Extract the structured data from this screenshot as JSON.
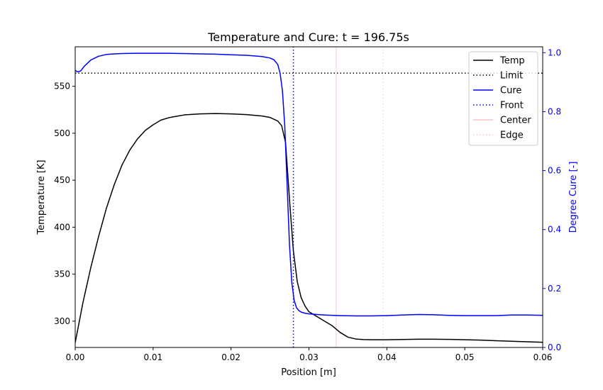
{
  "chart_data": {
    "type": "line",
    "title": "Temperature and Cure: t = 196.75s",
    "xlabel": "Position [m]",
    "ylabel": "Temperature [K]",
    "ylabel_right": "Degree Cure [-]",
    "xlim": [
      0.0,
      0.06
    ],
    "ylim": [
      272,
      592
    ],
    "ylim_right": [
      0.0,
      1.02
    ],
    "x_ticks": [
      0.0,
      0.01,
      0.02,
      0.03,
      0.04,
      0.05,
      0.06
    ],
    "x_tick_labels": [
      "0.00",
      "0.01",
      "0.02",
      "0.03",
      "0.04",
      "0.05",
      "0.06"
    ],
    "y_ticks": [
      300,
      350,
      400,
      450,
      500,
      550
    ],
    "y_tick_labels": [
      "300",
      "350",
      "400",
      "450",
      "500",
      "550"
    ],
    "y_right_ticks": [
      0.0,
      0.2,
      0.4,
      0.6,
      0.8,
      1.0
    ],
    "y_right_tick_labels": [
      "0.0",
      "0.2",
      "0.4",
      "0.6",
      "0.8",
      "1.0"
    ],
    "grid": false,
    "legend_position": "top-right",
    "series": [
      {
        "name": "Temp",
        "axis": "left",
        "color": "#000000",
        "style": "solid",
        "x": [
          0.0,
          0.001,
          0.002,
          0.003,
          0.004,
          0.005,
          0.006,
          0.007,
          0.008,
          0.009,
          0.01,
          0.011,
          0.012,
          0.014,
          0.016,
          0.018,
          0.02,
          0.022,
          0.024,
          0.025,
          0.026,
          0.0265,
          0.027,
          0.0275,
          0.028,
          0.0285,
          0.029,
          0.0295,
          0.03,
          0.031,
          0.032,
          0.033,
          0.034,
          0.035,
          0.036,
          0.037,
          0.038,
          0.04,
          0.042,
          0.044,
          0.046,
          0.048,
          0.05,
          0.052,
          0.054,
          0.056,
          0.058,
          0.06
        ],
        "y": [
          277,
          320,
          357,
          390,
          420,
          445,
          466,
          482,
          494,
          503,
          509,
          514,
          516.5,
          519.5,
          520.6,
          521,
          520.6,
          519.8,
          518.3,
          516.8,
          513,
          508,
          490,
          430,
          375,
          342,
          325,
          316,
          310,
          305,
          300,
          295,
          288,
          283,
          281,
          280.4,
          280.2,
          280.2,
          280.5,
          280.8,
          280.8,
          280.6,
          280.2,
          279.8,
          279.2,
          278.6,
          278,
          277.5
        ]
      },
      {
        "name": "Limit",
        "axis": "left",
        "color": "#000000",
        "style": "dotted",
        "x": [
          0.0,
          0.06
        ],
        "y": [
          564,
          564
        ]
      },
      {
        "name": "Cure",
        "axis": "right",
        "color": "#0000ff",
        "style": "solid",
        "x": [
          0.0,
          0.0003,
          0.0007,
          0.0012,
          0.002,
          0.003,
          0.004,
          0.005,
          0.006,
          0.008,
          0.01,
          0.012,
          0.014,
          0.016,
          0.018,
          0.02,
          0.022,
          0.024,
          0.025,
          0.0255,
          0.026,
          0.0263,
          0.0266,
          0.0269,
          0.0272,
          0.0275,
          0.0278,
          0.0281,
          0.0284,
          0.0287,
          0.029,
          0.0295,
          0.03,
          0.031,
          0.032,
          0.034,
          0.036,
          0.038,
          0.04,
          0.042,
          0.044,
          0.046,
          0.048,
          0.05,
          0.052,
          0.054,
          0.056,
          0.058,
          0.06
        ],
        "y": [
          0.94,
          0.935,
          0.938,
          0.955,
          0.975,
          0.988,
          0.994,
          0.996,
          0.997,
          0.998,
          0.998,
          0.998,
          0.997,
          0.996,
          0.995,
          0.993,
          0.991,
          0.987,
          0.982,
          0.976,
          0.96,
          0.93,
          0.87,
          0.75,
          0.55,
          0.35,
          0.22,
          0.16,
          0.135,
          0.125,
          0.12,
          0.116,
          0.114,
          0.112,
          0.11,
          0.108,
          0.107,
          0.107,
          0.108,
          0.11,
          0.112,
          0.111,
          0.109,
          0.108,
          0.108,
          0.108,
          0.11,
          0.11,
          0.109
        ]
      },
      {
        "name": "Front",
        "axis": "right",
        "color": "#0000ff",
        "style": "dotted",
        "orientation": "vertical",
        "x": [
          0.028,
          0.028
        ],
        "y": [
          0.0,
          1.02
        ]
      },
      {
        "name": "Center",
        "axis": "left",
        "color": "#ffc0cb",
        "style": "solid",
        "orientation": "vertical",
        "x": [
          0.0335,
          0.0335
        ],
        "y": [
          272,
          592
        ]
      },
      {
        "name": "Edge",
        "axis": "left",
        "color": "#ffc0cb",
        "style": "dotted",
        "orientation": "vertical",
        "x": [
          0.0395,
          0.0395
        ],
        "y": [
          272,
          592
        ]
      }
    ]
  }
}
